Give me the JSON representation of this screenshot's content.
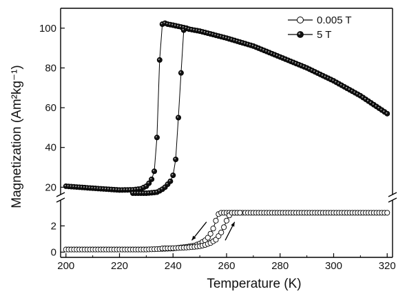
{
  "chart_data": {
    "type": "scatter",
    "xlabel": "Temperature (K)",
    "ylabel": "Magnetization (Am²kg⁻¹)",
    "xlim": [
      198,
      322
    ],
    "x_ticks": [
      "200",
      "220",
      "240",
      "260",
      "280",
      "300",
      "320"
    ],
    "y_axis_broken": true,
    "upper_panel": {
      "ylim": [
        17,
        110
      ],
      "y_ticks": [
        "20",
        "40",
        "60",
        "80",
        "100"
      ]
    },
    "lower_panel": {
      "ylim": [
        -0.4,
        3.6
      ],
      "y_ticks": [
        "0",
        "2"
      ]
    },
    "legend": {
      "position": "top-right"
    },
    "series": [
      {
        "name": "0.005 T",
        "marker": "open-circle",
        "panel": "lower",
        "cooling": {
          "x": [
            200,
            210,
            220,
            230,
            240,
            245,
            248,
            250,
            252,
            253,
            254,
            255,
            256,
            257,
            258,
            260,
            265,
            270,
            280,
            290,
            300,
            310,
            320
          ],
          "y": [
            0.2,
            0.2,
            0.2,
            0.2,
            0.28,
            0.4,
            0.5,
            0.65,
            0.9,
            1.1,
            1.4,
            1.8,
            2.4,
            2.9,
            3.0,
            3.0,
            3.0,
            3.0,
            3.0,
            3.0,
            3.0,
            3.0,
            3.0
          ]
        },
        "heating": {
          "x": [
            236,
            240,
            245,
            248,
            250,
            252,
            254,
            256,
            258,
            259,
            260,
            261,
            262,
            263,
            265
          ],
          "y": [
            0.28,
            0.3,
            0.35,
            0.4,
            0.45,
            0.55,
            0.7,
            0.95,
            1.5,
            1.9,
            2.4,
            2.8,
            3.0,
            3.0,
            3.0
          ]
        }
      },
      {
        "name": "5 T",
        "marker": "filled-circle",
        "panel": "upper",
        "cooling": {
          "x": [
            200,
            210,
            220,
            225,
            228,
            230,
            231,
            232,
            233,
            234,
            235,
            236,
            237,
            238,
            240,
            245
          ],
          "y": [
            20.5,
            19.5,
            18.6,
            18.7,
            19.2,
            20.5,
            22,
            24,
            28,
            45,
            84,
            102,
            102.5,
            102,
            101.5,
            100
          ]
        },
        "heating": {
          "x": [
            225,
            230,
            232,
            234,
            235,
            236,
            237,
            238,
            239,
            240,
            241,
            242,
            243,
            244,
            245,
            246,
            250,
            260,
            270,
            280,
            290,
            300,
            310,
            320
          ],
          "y": [
            17,
            17,
            17.2,
            17.5,
            18.2,
            19,
            20,
            21.5,
            23,
            26,
            34,
            55,
            77.5,
            99,
            100,
            99.5,
            98.5,
            95,
            91,
            85.5,
            80,
            73.5,
            66,
            57
          ]
        }
      }
    ]
  }
}
